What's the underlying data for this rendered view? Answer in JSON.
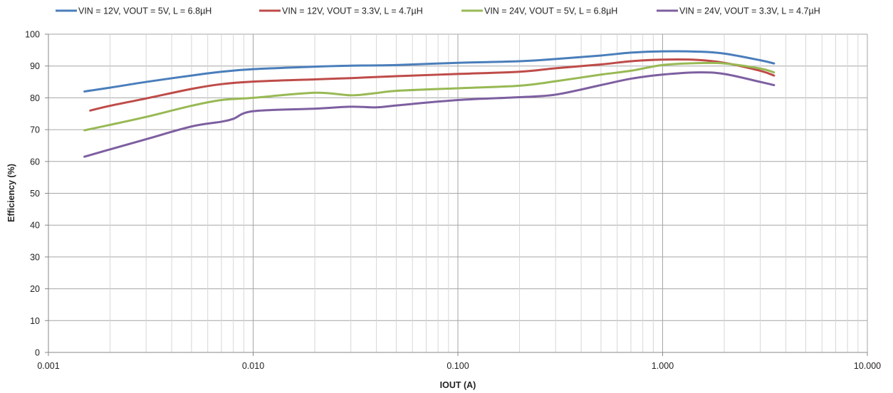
{
  "chart_data": {
    "type": "line",
    "title": "",
    "xlabel": "IOUT (A)",
    "ylabel": "Efficiency (%)",
    "xscale": "log",
    "xlim": [
      0.001,
      10
    ],
    "ylim": [
      0,
      100
    ],
    "grid": true,
    "legend": "top",
    "x_tick_labels": [
      "0.001",
      "0.010",
      "0.100",
      "1.000",
      "10.000"
    ],
    "y_tick_labels": [
      "0",
      "10",
      "20",
      "30",
      "40",
      "50",
      "60",
      "70",
      "80",
      "90",
      "100"
    ],
    "series": [
      {
        "name": "VIN = 12V, VOUT = 5V, L = 6.8µH",
        "color": "#4a7ebb",
        "x": [
          0.0015,
          0.002,
          0.003,
          0.005,
          0.007,
          0.01,
          0.02,
          0.03,
          0.05,
          0.1,
          0.2,
          0.3,
          0.5,
          0.7,
          1.0,
          1.5,
          2.0,
          3.0,
          3.5
        ],
        "y": [
          82,
          83.2,
          85,
          87,
          88.2,
          89,
          89.8,
          90.1,
          90.3,
          91,
          91.5,
          92.2,
          93.3,
          94.2,
          94.6,
          94.5,
          93.9,
          91.8,
          90.8
        ]
      },
      {
        "name": "VIN = 12V, VOUT = 3.3V, L = 4.7µH",
        "color": "#be4b48",
        "x": [
          0.0016,
          0.002,
          0.003,
          0.005,
          0.007,
          0.01,
          0.02,
          0.03,
          0.05,
          0.1,
          0.2,
          0.3,
          0.5,
          0.7,
          1.0,
          1.5,
          2.0,
          3.0,
          3.5
        ],
        "y": [
          76,
          77.5,
          79.8,
          82.8,
          84.3,
          85.1,
          85.8,
          86.2,
          86.8,
          87.5,
          88.2,
          89.3,
          90.5,
          91.5,
          92,
          91.9,
          91,
          88.5,
          87
        ]
      },
      {
        "name": "VIN = 24V, VOUT = 5V, L = 6.8µH",
        "color": "#98b954",
        "x": [
          0.0015,
          0.002,
          0.003,
          0.005,
          0.007,
          0.01,
          0.02,
          0.03,
          0.04,
          0.05,
          0.1,
          0.2,
          0.3,
          0.5,
          0.7,
          1.0,
          1.5,
          2.0,
          3.0,
          3.5
        ],
        "y": [
          69.8,
          71.5,
          74,
          77.5,
          79.3,
          80,
          81.6,
          80.8,
          81.5,
          82.2,
          83,
          83.8,
          85.2,
          87.3,
          88.5,
          90.3,
          90.9,
          90.8,
          89.2,
          88
        ]
      },
      {
        "name": "VIN = 24V, VOUT = 3.3V, L = 4.7µH",
        "color": "#7d5fa0",
        "x": [
          0.0015,
          0.002,
          0.003,
          0.005,
          0.007,
          0.008,
          0.01,
          0.02,
          0.03,
          0.04,
          0.05,
          0.1,
          0.2,
          0.3,
          0.5,
          0.7,
          1.0,
          1.5,
          2.0,
          3.0,
          3.5
        ],
        "y": [
          61.5,
          63.8,
          67,
          71,
          72.5,
          73.4,
          75.8,
          76.6,
          77.2,
          77,
          77.6,
          79.3,
          80.2,
          81,
          84,
          86,
          87.3,
          88,
          87.5,
          85,
          84
        ]
      }
    ]
  }
}
